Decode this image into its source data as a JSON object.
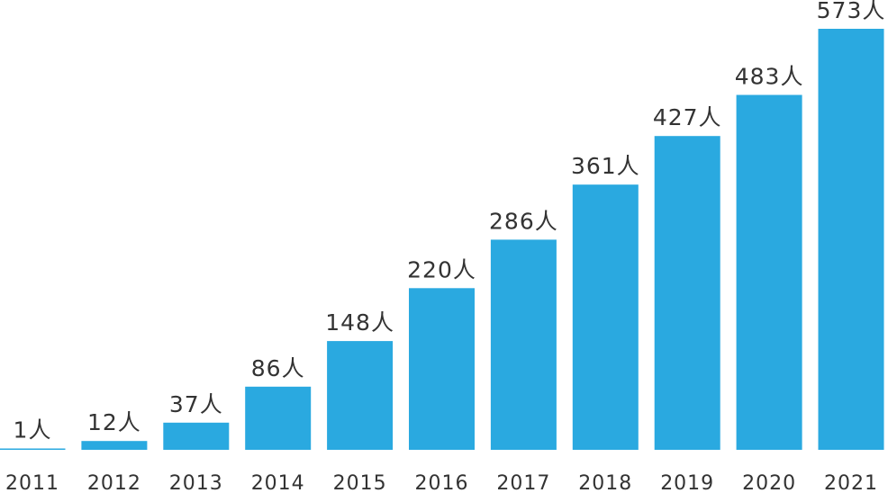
{
  "chart_data": {
    "type": "bar",
    "categories": [
      "2011",
      "2012",
      "2013",
      "2014",
      "2015",
      "2016",
      "2017",
      "2018",
      "2019",
      "2020",
      "2021"
    ],
    "values": [
      1,
      12,
      37,
      86,
      148,
      220,
      286,
      361,
      427,
      483,
      573
    ],
    "data_labels": [
      "1人",
      "12人",
      "37人",
      "86人",
      "148人",
      "220人",
      "286人",
      "361人",
      "427人",
      "483人",
      "573人"
    ],
    "title": "",
    "xlabel": "",
    "ylabel": "",
    "ylim": [
      0,
      600
    ],
    "grid": false,
    "legend": "none",
    "colors": {
      "bar": "#2aa9e0",
      "text": "#333333",
      "background": "#ffffff"
    }
  }
}
